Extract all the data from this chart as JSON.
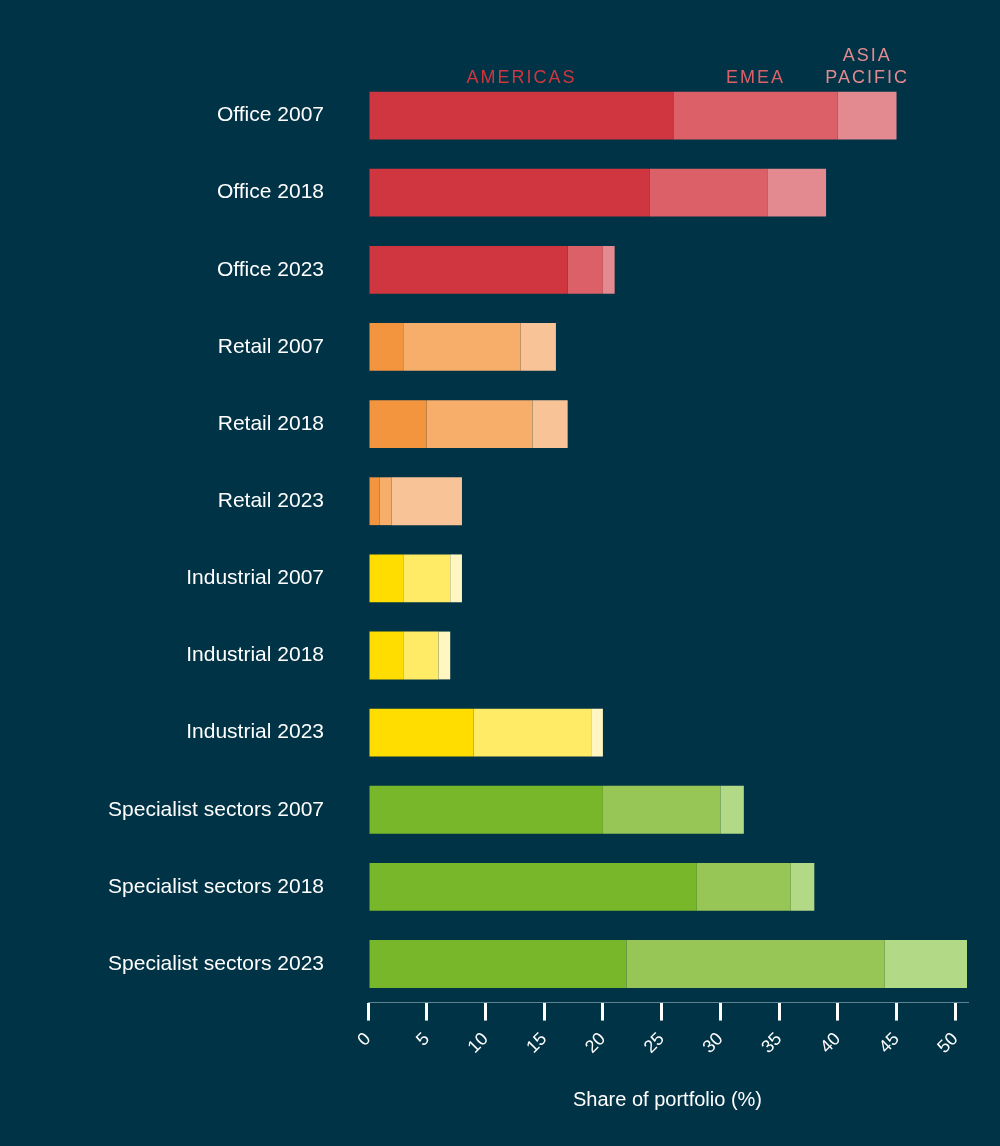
{
  "chart_data": {
    "type": "bar",
    "orientation": "horizontal",
    "stacked": true,
    "xlabel": "Share of portfolio (%)",
    "categories": [
      "Office 2007",
      "Office 2018",
      "Office 2023",
      "Retail 2007",
      "Retail 2018",
      "Retail 2023",
      "Industrial 2007",
      "Industrial 2018",
      "Industrial 2023",
      "Specialist sectors 2007",
      "Specialist sectors 2018",
      "Specialist sectors 2023"
    ],
    "series": [
      {
        "name": "AMERICAS",
        "values": [
          26,
          24,
          17,
          3,
          5,
          1,
          3,
          3,
          9,
          20,
          28,
          22
        ],
        "colors": [
          "#d0363f",
          "#d0363f",
          "#d0363f",
          "#f3953f",
          "#f3953f",
          "#f3953f",
          "#ffdd00",
          "#ffdd00",
          "#ffdd00",
          "#78b62a",
          "#78b62a",
          "#78b62a"
        ]
      },
      {
        "name": "EMEA",
        "values": [
          14,
          10,
          3,
          10,
          9,
          1,
          4,
          3,
          10,
          10,
          8,
          22
        ],
        "colors": [
          "#dc6068",
          "#dc6068",
          "#dc6068",
          "#f6ae6a",
          "#f6ae6a",
          "#f6ae6a",
          "#ffeb66",
          "#ffeb66",
          "#ffeb66",
          "#97c656",
          "#97c656",
          "#97c656"
        ]
      },
      {
        "name": "ASIA PACIFIC",
        "values": [
          5,
          5,
          1,
          3,
          3,
          6,
          1,
          1,
          1,
          2,
          2,
          7
        ],
        "colors": [
          "#e38a90",
          "#e38a90",
          "#e38a90",
          "#f8c396",
          "#f8c396",
          "#f8c396",
          "#fff6c2",
          "#fff6c2",
          "#fff6c2",
          "#b1d986",
          "#b1d986",
          "#b1d986"
        ]
      }
    ],
    "xlim": [
      0,
      51
    ],
    "xticks": [
      0,
      5,
      10,
      15,
      20,
      25,
      30,
      35,
      40,
      45,
      50
    ],
    "grid": false,
    "legend": false
  }
}
